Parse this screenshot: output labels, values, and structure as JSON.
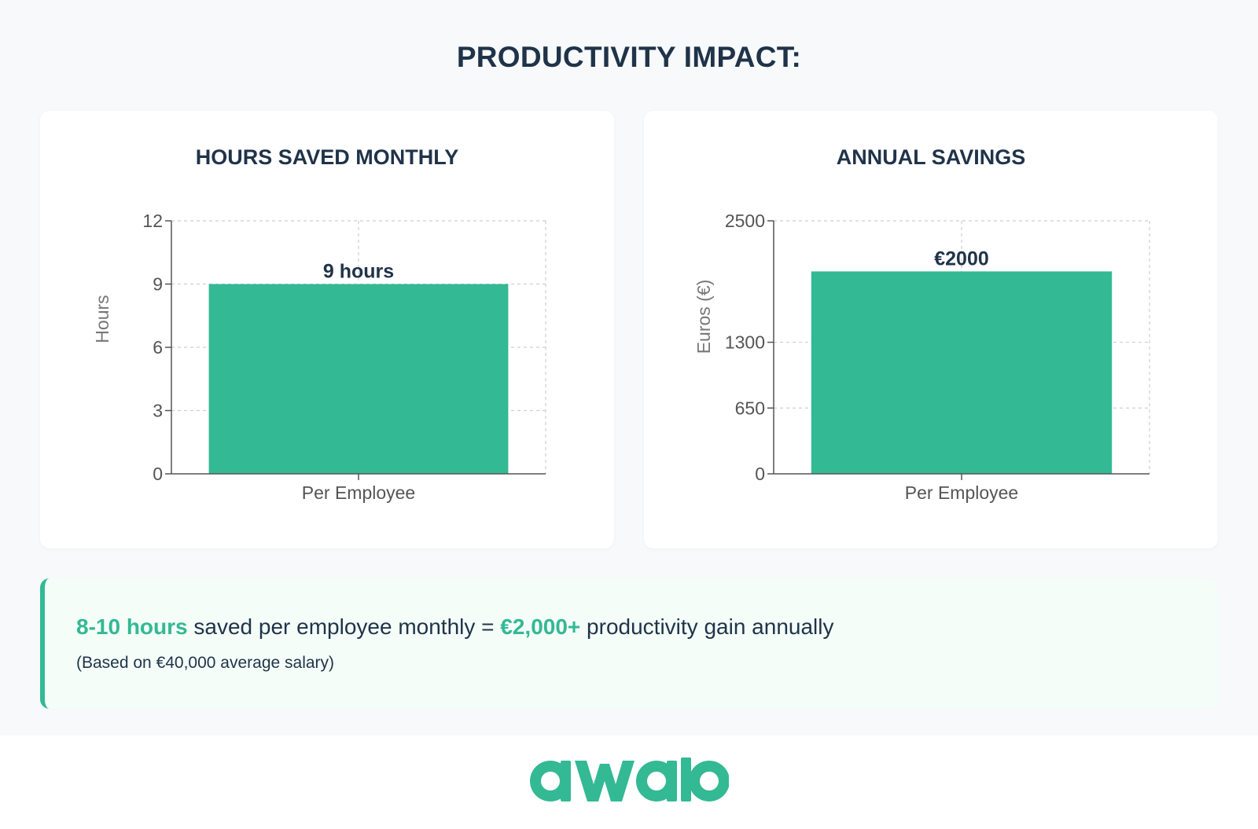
{
  "page": {
    "title": "PRODUCTIVITY IMPACT:"
  },
  "charts": [
    {
      "title": "HOURS SAVED MONTHLY",
      "ylabel": "Hours",
      "xlabel": "Per Employee",
      "bar_label": "9 hours"
    },
    {
      "title": "ANNUAL SAVINGS",
      "ylabel": "Euros (€)",
      "xlabel": "Per Employee",
      "bar_label": "€2000"
    }
  ],
  "callout": {
    "highlight_1": "8-10 hours",
    "text_1": " saved per employee monthly = ",
    "highlight_2": "€2,000+",
    "text_2": " productivity gain annually",
    "subtext": "(Based on €40,000 average salary)"
  },
  "footer": {
    "logo_text": "awaio"
  },
  "colors": {
    "accent": "#33b994",
    "heading": "#1f3349",
    "background": "#f7f9fa",
    "callout_bg": "#f4fdf8"
  },
  "chart_data": [
    {
      "type": "bar",
      "title": "HOURS SAVED MONTHLY",
      "categories": [
        "Per Employee"
      ],
      "values": [
        9
      ],
      "data_labels": [
        "9 hours"
      ],
      "xlabel": "",
      "ylabel": "Hours",
      "ylim": [
        0,
        12
      ],
      "yticks": [
        0,
        3,
        6,
        9,
        12
      ],
      "grid": true,
      "color": "#33b994"
    },
    {
      "type": "bar",
      "title": "ANNUAL SAVINGS",
      "categories": [
        "Per Employee"
      ],
      "values": [
        2000
      ],
      "data_labels": [
        "€2000"
      ],
      "xlabel": "",
      "ylabel": "Euros (€)",
      "ylim": [
        0,
        2500
      ],
      "yticks": [
        0,
        650,
        1300,
        2500
      ],
      "grid": true,
      "color": "#33b994"
    }
  ]
}
